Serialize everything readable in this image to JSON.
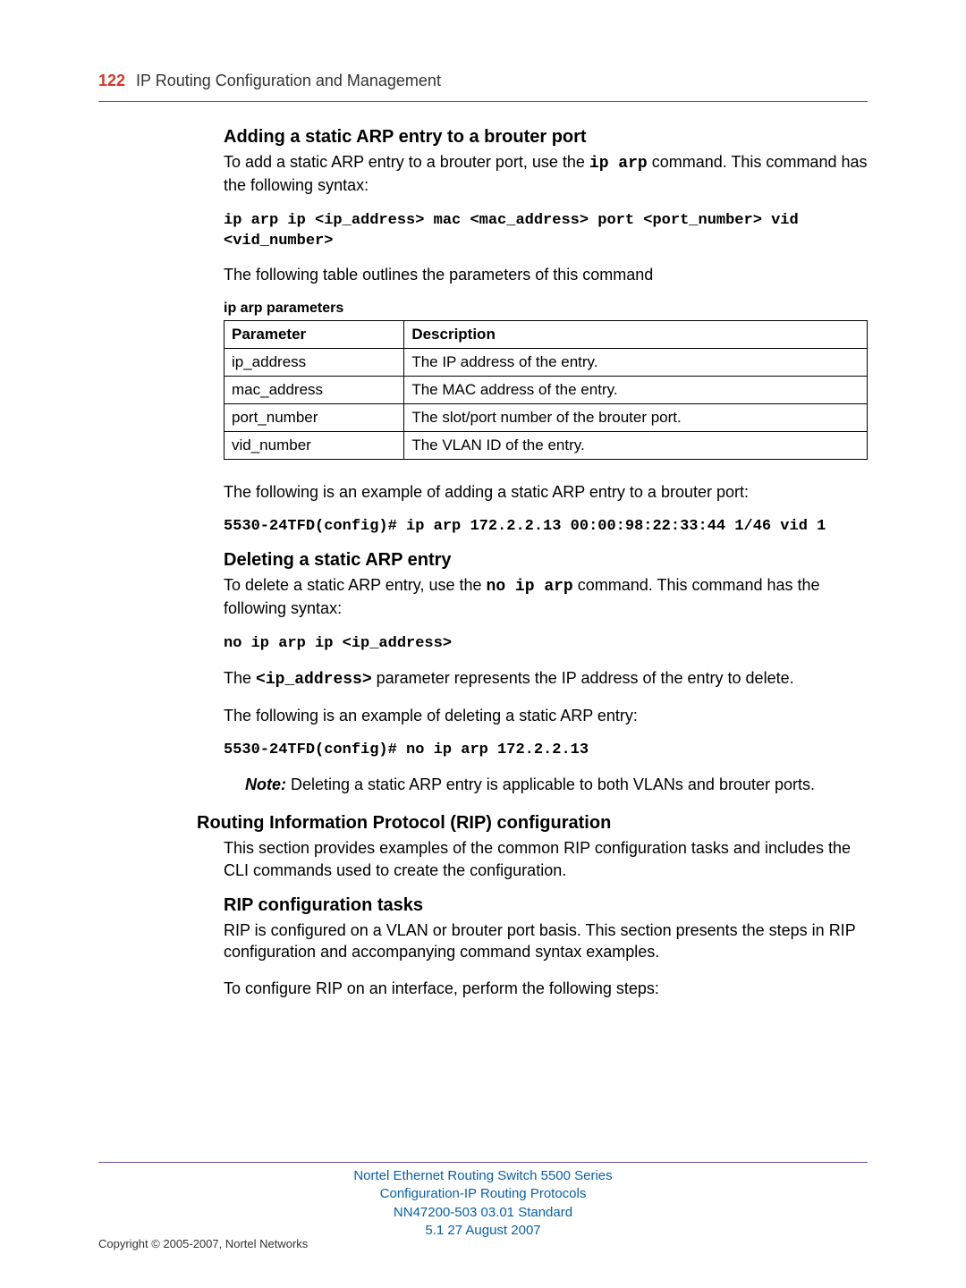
{
  "colors": {
    "accent_red": "#d03a2b",
    "rule_purple": "#6a4c9c",
    "footer_blue": "#0a5fa5",
    "text": "#000000",
    "background": "#ffffff",
    "table_border": "#000000"
  },
  "typography": {
    "body_font": "Arial, Helvetica, sans-serif",
    "mono_font": "Courier New",
    "body_size_pt": 13,
    "heading_size_pt": 15,
    "code_size_pt": 12.5,
    "footer_size_pt": 11
  },
  "header": {
    "page_number": "122",
    "chapter": "IP Routing Configuration and Management"
  },
  "sections": {
    "s1": {
      "title": "Adding a static ARP entry to a brouter port",
      "p1_a": "To add a static ARP entry to a brouter port, use the ",
      "p1_cmd": "ip arp",
      "p1_b": " command. This command has the following syntax:",
      "code1": "ip arp ip <ip_address> mac <mac_address> port <port_number> vid <vid_number>",
      "p2": "The following table outlines the parameters of this command",
      "table_caption": "ip arp parameters",
      "p3": "The following is an example of adding a static ARP entry to a brouter port:",
      "code2": "5530-24TFD(config)# ip arp 172.2.2.13 00:00:98:22:33:44 1/46 vid 1"
    },
    "table": {
      "columns": [
        "Parameter",
        "Description"
      ],
      "col_widths": [
        "28%",
        "72%"
      ],
      "rows": [
        [
          "ip_address",
          "The IP address of the entry."
        ],
        [
          "mac_address",
          "The MAC address of the entry."
        ],
        [
          "port_number",
          "The slot/port number of the brouter port."
        ],
        [
          "vid_number",
          "The VLAN ID of the entry."
        ]
      ]
    },
    "s2": {
      "title": "Deleting a static ARP entry",
      "p1_a": "To delete a static ARP entry, use the ",
      "p1_cmd": "no ip arp",
      "p1_b": " command. This command has the following syntax:",
      "code1": "no ip arp ip <ip_address>",
      "p2_a": "The ",
      "p2_cmd": "<ip_address>",
      "p2_b": " parameter represents the IP address of the entry to delete.",
      "p3": "The following is an example of deleting a static ARP entry:",
      "code2": "5530-24TFD(config)# no ip arp 172.2.2.13",
      "note_label": "Note:",
      "note_text": " Deleting a static ARP entry is applicable to both VLANs and brouter ports."
    },
    "s3": {
      "title": "Routing Information Protocol (RIP) configuration",
      "p1": "This section provides examples of the common RIP configuration tasks and includes the CLI commands used to create the configuration."
    },
    "s4": {
      "title": "RIP configuration tasks",
      "p1": "RIP is configured on a VLAN or brouter port basis. This section presents the steps in RIP configuration and accompanying command syntax examples.",
      "p2": "To configure RIP on an interface, perform the following steps:"
    }
  },
  "footer": {
    "line1": "Nortel Ethernet Routing Switch 5500 Series",
    "line2": "Configuration-IP Routing Protocols",
    "line3": "NN47200-503   03.01   Standard",
    "line4": "5.1   27 August 2007",
    "copyright": "Copyright © 2005-2007, Nortel Networks"
  }
}
